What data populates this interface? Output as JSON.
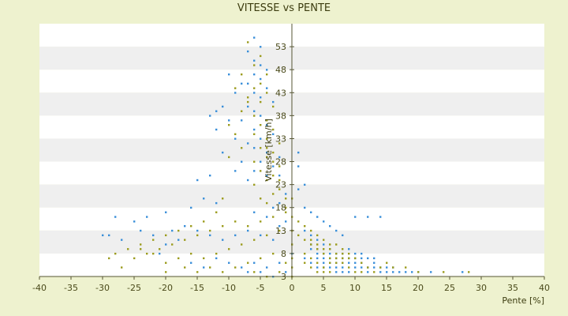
{
  "chart_data": {
    "type": "scatter",
    "title": "VITESSE vs PENTE",
    "xlabel": "Pente [%]",
    "ylabel": "Vitesse [km/h]",
    "xlim": [
      -40,
      40
    ],
    "ylim": [
      3,
      58
    ],
    "x_ticks": [
      "-40",
      "-35",
      "-30",
      "-25",
      "-20",
      "-15",
      "-10",
      "-5",
      "0",
      "5",
      "10",
      "15",
      "20",
      "25",
      "30",
      "35",
      "40"
    ],
    "y_ticks": [
      "3",
      "8",
      "13",
      "18",
      "23",
      "28",
      "33",
      "38",
      "43",
      "48",
      "53"
    ],
    "grid": "horizontal-bands",
    "legend": "none",
    "colors": {
      "background": "#eef2cf",
      "band_light": "#ffffff",
      "band_dark": "#efefef",
      "series_a": "#3a8fd9",
      "series_b": "#9c9c1e",
      "axis": "#555533"
    },
    "series": [
      {
        "color": "#3a8fd9",
        "points": [
          [
            -6,
            55
          ],
          [
            -5,
            53
          ],
          [
            -7,
            52
          ],
          [
            -6,
            50
          ],
          [
            -5,
            49
          ],
          [
            -4,
            48
          ],
          [
            -6,
            47
          ],
          [
            -5,
            46
          ],
          [
            -7,
            45
          ],
          [
            -4,
            44
          ],
          [
            -6,
            43
          ],
          [
            -5,
            42
          ],
          [
            -3,
            41
          ],
          [
            -7,
            40
          ],
          [
            -6,
            39
          ],
          [
            -5,
            38
          ],
          [
            -8,
            37
          ],
          [
            -4,
            36
          ],
          [
            -6,
            35
          ],
          [
            -3,
            34
          ],
          [
            -5,
            33
          ],
          [
            -7,
            32
          ],
          [
            -6,
            31
          ],
          [
            -4,
            30
          ],
          [
            -2,
            29
          ],
          [
            -5,
            28
          ],
          [
            -3,
            27
          ],
          [
            -6,
            26
          ],
          [
            -4,
            25
          ],
          [
            -7,
            24
          ],
          [
            -10,
            47
          ],
          [
            -8,
            45
          ],
          [
            -9,
            43
          ],
          [
            -11,
            40
          ],
          [
            -12,
            39
          ],
          [
            -13,
            38
          ],
          [
            -10,
            37
          ],
          [
            -12,
            35
          ],
          [
            -9,
            33
          ],
          [
            -11,
            30
          ],
          [
            -8,
            28
          ],
          [
            -9,
            26
          ],
          [
            -15,
            24
          ],
          [
            -13,
            25
          ],
          [
            -14,
            20
          ],
          [
            -12,
            19
          ],
          [
            -16,
            18
          ],
          [
            -20,
            17
          ],
          [
            -23,
            16
          ],
          [
            -25,
            15
          ],
          [
            -28,
            16
          ],
          [
            -29,
            12
          ],
          [
            -27,
            11
          ],
          [
            -30,
            12
          ],
          [
            -24,
            13
          ],
          [
            -22,
            12
          ],
          [
            -19,
            13
          ],
          [
            -17,
            14
          ],
          [
            -15,
            13
          ],
          [
            -13,
            12
          ],
          [
            -11,
            11
          ],
          [
            -9,
            12
          ],
          [
            -7,
            13
          ],
          [
            -5,
            12
          ],
          [
            -3,
            11
          ],
          [
            -2,
            14
          ],
          [
            -1,
            15
          ],
          [
            -4,
            16
          ],
          [
            -6,
            17
          ],
          [
            -3,
            18
          ],
          [
            -2,
            19
          ],
          [
            -1,
            21
          ],
          [
            1,
            22
          ],
          [
            2,
            18
          ],
          [
            3,
            17
          ],
          [
            4,
            16
          ],
          [
            5,
            15
          ],
          [
            6,
            14
          ],
          [
            7,
            13
          ],
          [
            8,
            12
          ],
          [
            10,
            16
          ],
          [
            12,
            16
          ],
          [
            14,
            16
          ],
          [
            2,
            13
          ],
          [
            3,
            12
          ],
          [
            4,
            11
          ],
          [
            5,
            10
          ],
          [
            6,
            9
          ],
          [
            7,
            8
          ],
          [
            8,
            7
          ],
          [
            9,
            6
          ],
          [
            10,
            5
          ],
          [
            11,
            6
          ],
          [
            12,
            5
          ],
          [
            13,
            6
          ],
          [
            14,
            5
          ],
          [
            15,
            4
          ],
          [
            16,
            5
          ],
          [
            17,
            4
          ],
          [
            18,
            4
          ],
          [
            19,
            4
          ],
          [
            20,
            4
          ],
          [
            22,
            4
          ],
          [
            27,
            4
          ],
          [
            3,
            9
          ],
          [
            4,
            8
          ],
          [
            5,
            7
          ],
          [
            6,
            6
          ],
          [
            7,
            5
          ],
          [
            8,
            6
          ],
          [
            9,
            7
          ],
          [
            10,
            8
          ],
          [
            11,
            7
          ],
          [
            2,
            7
          ],
          [
            3,
            6
          ],
          [
            4,
            5
          ],
          [
            5,
            6
          ],
          [
            6,
            7
          ],
          [
            7,
            6
          ],
          [
            8,
            5
          ],
          [
            9,
            4
          ],
          [
            10,
            6
          ],
          [
            11,
            5
          ],
          [
            12,
            4
          ],
          [
            13,
            5
          ],
          [
            14,
            4
          ],
          [
            15,
            5
          ],
          [
            16,
            4
          ],
          [
            3,
            10
          ],
          [
            4,
            9
          ],
          [
            5,
            8
          ],
          [
            6,
            8
          ],
          [
            7,
            7
          ],
          [
            8,
            8
          ],
          [
            9,
            9
          ],
          [
            10,
            7
          ],
          [
            11,
            8
          ],
          [
            12,
            7
          ],
          [
            13,
            7
          ],
          [
            4,
            7
          ],
          [
            5,
            5
          ],
          [
            6,
            5
          ],
          [
            7,
            4
          ],
          [
            8,
            4
          ],
          [
            1,
            30
          ],
          [
            1,
            27
          ],
          [
            2,
            23
          ],
          [
            -2,
            25
          ],
          [
            -18,
            11
          ],
          [
            -20,
            10
          ],
          [
            -21,
            8
          ],
          [
            -16,
            6
          ],
          [
            -14,
            5
          ],
          [
            -12,
            7
          ],
          [
            -10,
            6
          ],
          [
            -8,
            5
          ],
          [
            -6,
            6
          ],
          [
            -4,
            5
          ],
          [
            -2,
            6
          ],
          [
            0,
            8
          ],
          [
            -1,
            4
          ],
          [
            -3,
            3
          ],
          [
            -5,
            4
          ],
          [
            -7,
            4
          ]
        ]
      },
      {
        "color": "#9c9c1e",
        "points": [
          [
            -7,
            54
          ],
          [
            -5,
            51
          ],
          [
            -6,
            49
          ],
          [
            -4,
            47
          ],
          [
            -5,
            45
          ],
          [
            -6,
            44
          ],
          [
            -4,
            43
          ],
          [
            -7,
            42
          ],
          [
            -5,
            41
          ],
          [
            -3,
            40
          ],
          [
            -6,
            38
          ],
          [
            -4,
            37
          ],
          [
            -5,
            36
          ],
          [
            -3,
            35
          ],
          [
            -6,
            34
          ],
          [
            -4,
            33
          ],
          [
            -2,
            32
          ],
          [
            -5,
            31
          ],
          [
            -3,
            30
          ],
          [
            -4,
            29
          ],
          [
            -6,
            28
          ],
          [
            -2,
            27
          ],
          [
            -5,
            26
          ],
          [
            -3,
            25
          ],
          [
            -4,
            24
          ],
          [
            -6,
            23
          ],
          [
            -2,
            22
          ],
          [
            -3,
            21
          ],
          [
            -5,
            20
          ],
          [
            -4,
            19
          ],
          [
            -1,
            18
          ],
          [
            -8,
            47
          ],
          [
            -9,
            44
          ],
          [
            -7,
            41
          ],
          [
            -8,
            39
          ],
          [
            -10,
            36
          ],
          [
            -9,
            34
          ],
          [
            -8,
            31
          ],
          [
            -10,
            29
          ],
          [
            -11,
            20
          ],
          [
            -12,
            17
          ],
          [
            -14,
            15
          ],
          [
            -16,
            14
          ],
          [
            -18,
            13
          ],
          [
            -20,
            12
          ],
          [
            -22,
            11
          ],
          [
            -24,
            10
          ],
          [
            -26,
            9
          ],
          [
            -28,
            8
          ],
          [
            -29,
            7
          ],
          [
            -27,
            5
          ],
          [
            -25,
            7
          ],
          [
            -23,
            8
          ],
          [
            -21,
            9
          ],
          [
            -19,
            10
          ],
          [
            -17,
            11
          ],
          [
            -15,
            12
          ],
          [
            -13,
            13
          ],
          [
            -11,
            14
          ],
          [
            -9,
            15
          ],
          [
            -7,
            14
          ],
          [
            -5,
            15
          ],
          [
            -3,
            16
          ],
          [
            -1,
            17
          ],
          [
            -2,
            13
          ],
          [
            -4,
            12
          ],
          [
            -6,
            11
          ],
          [
            -8,
            10
          ],
          [
            -10,
            9
          ],
          [
            -12,
            8
          ],
          [
            -14,
            7
          ],
          [
            -16,
            8
          ],
          [
            -18,
            7
          ],
          [
            -20,
            6
          ],
          [
            -22,
            8
          ],
          [
            -24,
            9
          ],
          [
            -20,
            4
          ],
          [
            -17,
            5
          ],
          [
            -15,
            4
          ],
          [
            -13,
            5
          ],
          [
            -11,
            4
          ],
          [
            -9,
            5
          ],
          [
            -7,
            6
          ],
          [
            -5,
            7
          ],
          [
            -3,
            8
          ],
          [
            -1,
            6
          ],
          [
            -2,
            4
          ],
          [
            -4,
            3
          ],
          [
            -6,
            4
          ],
          [
            0,
            3
          ],
          [
            0,
            5
          ],
          [
            0,
            7
          ],
          [
            0,
            10
          ],
          [
            0,
            13
          ],
          [
            0,
            16
          ],
          [
            0,
            20
          ],
          [
            1,
            12
          ],
          [
            2,
            11
          ],
          [
            3,
            10
          ],
          [
            4,
            9
          ],
          [
            5,
            8
          ],
          [
            6,
            7
          ],
          [
            7,
            6
          ],
          [
            8,
            7
          ],
          [
            9,
            8
          ],
          [
            10,
            7
          ],
          [
            11,
            6
          ],
          [
            12,
            5
          ],
          [
            13,
            4
          ],
          [
            14,
            5
          ],
          [
            15,
            6
          ],
          [
            16,
            5
          ],
          [
            18,
            5
          ],
          [
            20,
            4
          ],
          [
            24,
            4
          ],
          [
            28,
            4
          ],
          [
            2,
            8
          ],
          [
            3,
            7
          ],
          [
            4,
            6
          ],
          [
            5,
            5
          ],
          [
            6,
            6
          ],
          [
            7,
            7
          ],
          [
            8,
            6
          ],
          [
            9,
            5
          ],
          [
            10,
            4
          ],
          [
            11,
            4
          ],
          [
            3,
            11
          ],
          [
            4,
            10
          ],
          [
            5,
            9
          ],
          [
            6,
            9
          ],
          [
            7,
            8
          ],
          [
            8,
            8
          ],
          [
            9,
            7
          ],
          [
            2,
            6
          ],
          [
            3,
            5
          ],
          [
            4,
            4
          ],
          [
            5,
            4
          ],
          [
            6,
            4
          ],
          [
            4,
            12
          ],
          [
            5,
            11
          ],
          [
            6,
            10
          ],
          [
            7,
            10
          ],
          [
            8,
            9
          ],
          [
            3,
            13
          ],
          [
            2,
            14
          ],
          [
            1,
            15
          ],
          [
            -1,
            20
          ],
          [
            -2,
            24
          ],
          [
            -3,
            28
          ],
          [
            -4,
            31
          ]
        ]
      }
    ]
  }
}
